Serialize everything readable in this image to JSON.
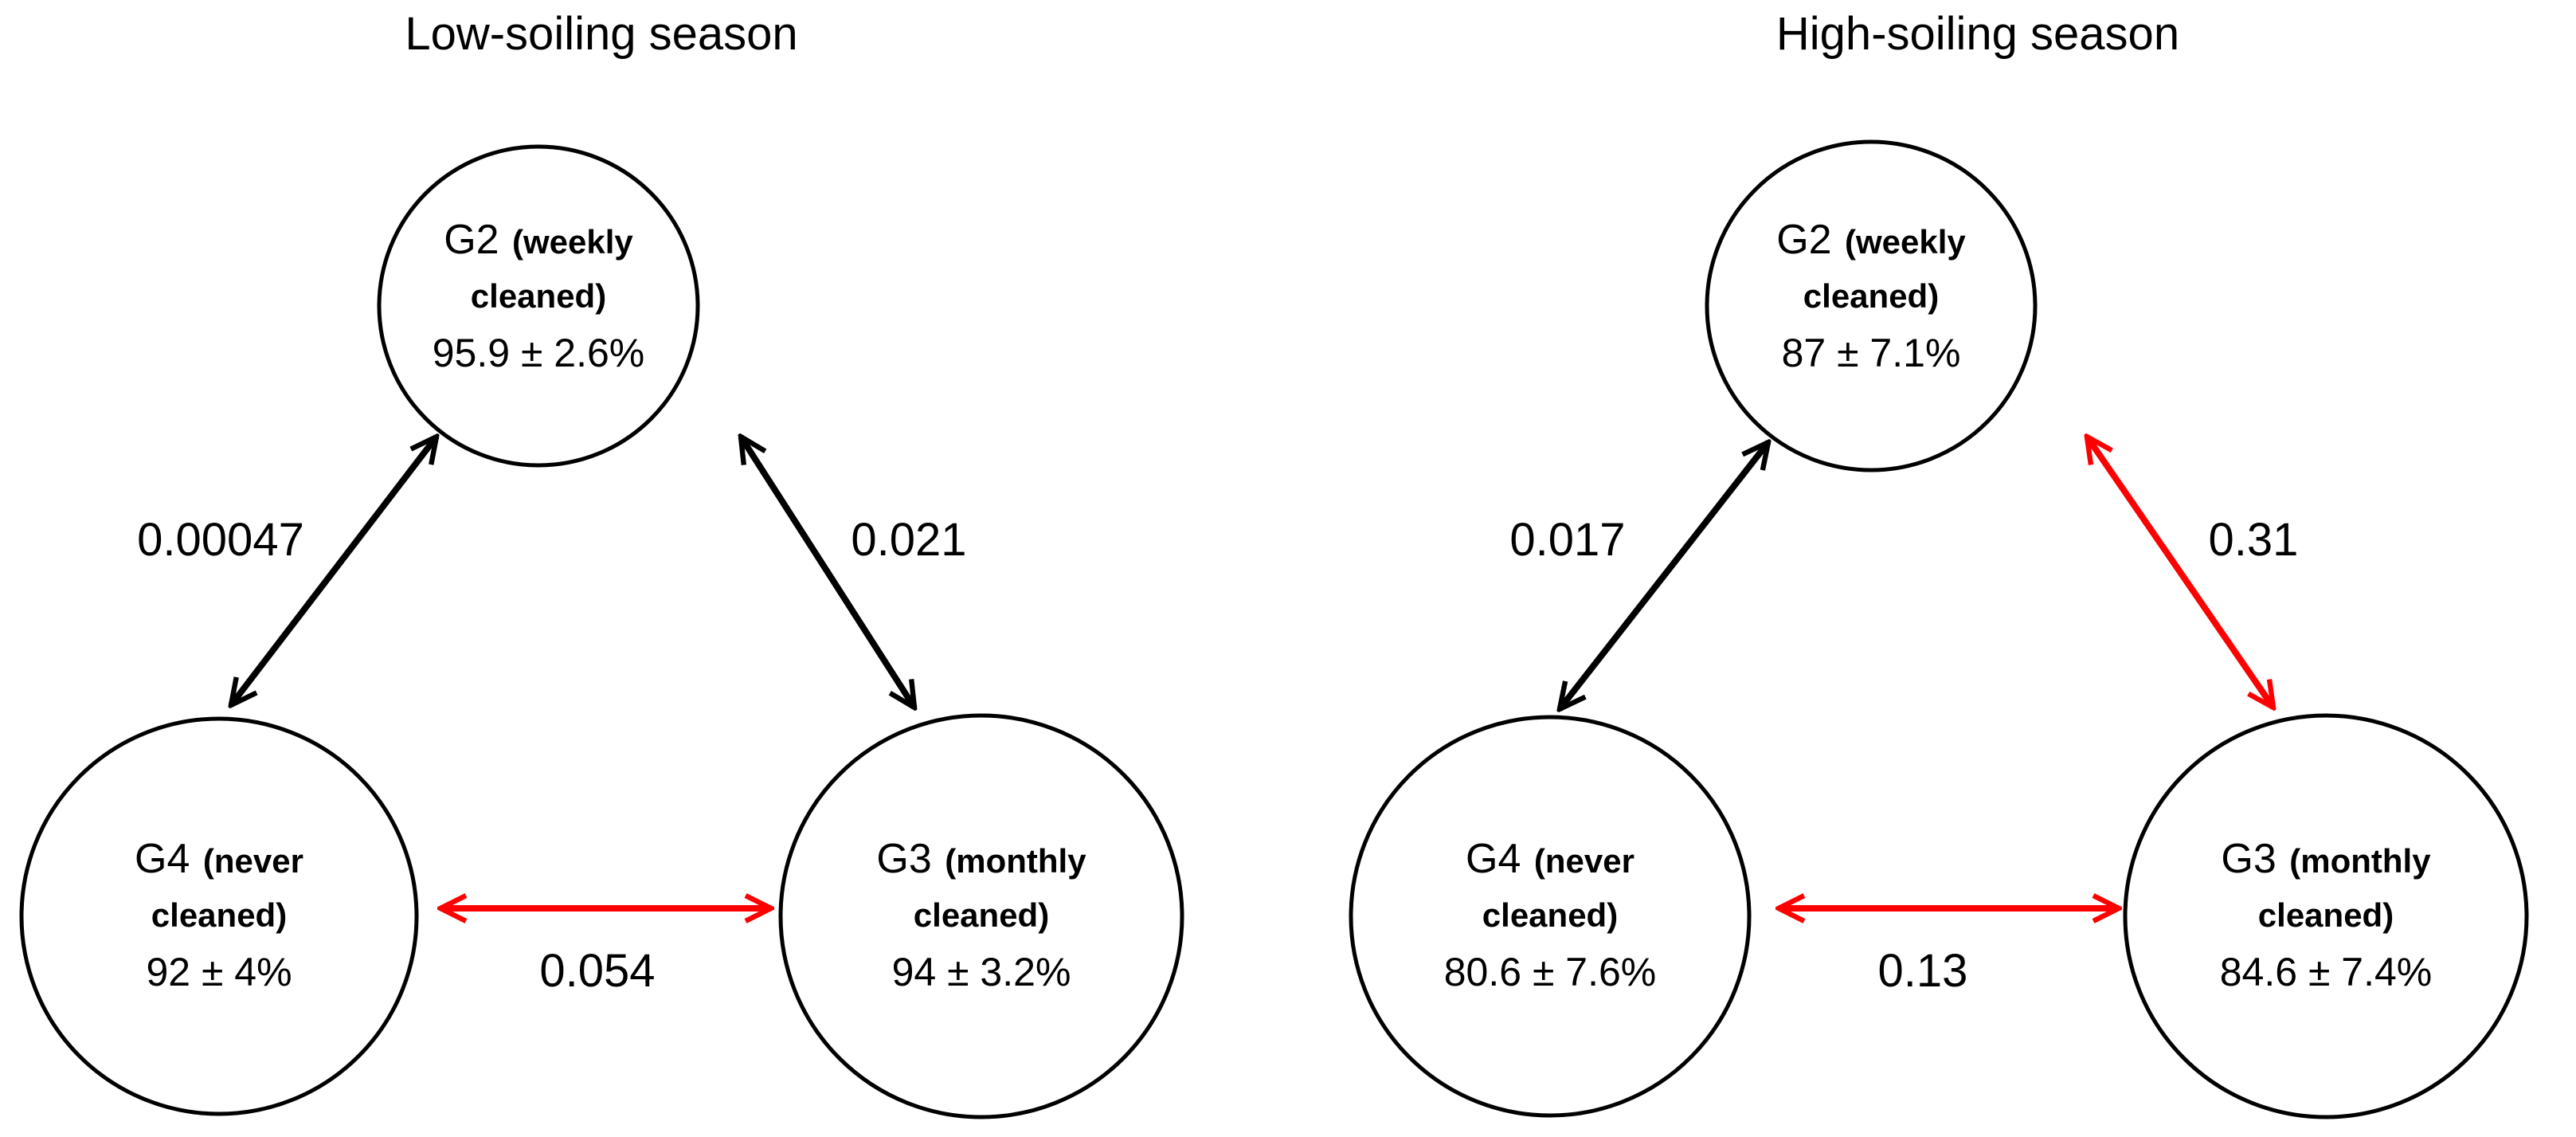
{
  "colors": {
    "significant": "#000000",
    "not_significant": "#ff0000"
  },
  "panels": [
    {
      "title": "Low-soiling season",
      "nodes": [
        {
          "id": "G2",
          "name": "G2",
          "sub1": "(weekly",
          "sub2": "cleaned)",
          "value": "95.9 ± 2.6%"
        },
        {
          "id": "G4",
          "name": "G4",
          "sub1": "(never",
          "sub2": "cleaned)",
          "value": "92 ± 4%"
        },
        {
          "id": "G3",
          "name": "G3",
          "sub1": "(monthly",
          "sub2": "cleaned)",
          "value": "94 ± 3.2%"
        }
      ],
      "edges": [
        {
          "id": "G2-G4",
          "label": "0.00047",
          "color": "#000000"
        },
        {
          "id": "G2-G3",
          "label": "0.021",
          "color": "#000000"
        },
        {
          "id": "G4-G3",
          "label": "0.054",
          "color": "#ff0000"
        }
      ]
    },
    {
      "title": "High-soiling season",
      "nodes": [
        {
          "id": "G2",
          "name": "G2",
          "sub1": "(weekly",
          "sub2": "cleaned)",
          "value": "87 ± 7.1%"
        },
        {
          "id": "G4",
          "name": "G4",
          "sub1": "(never",
          "sub2": "cleaned)",
          "value": "80.6 ± 7.6%"
        },
        {
          "id": "G3",
          "name": "G3",
          "sub1": "(monthly",
          "sub2": "cleaned)",
          "value": "84.6 ± 7.4%"
        }
      ],
      "edges": [
        {
          "id": "G2-G4",
          "label": "0.017",
          "color": "#000000"
        },
        {
          "id": "G2-G3",
          "label": "0.31",
          "color": "#ff0000"
        },
        {
          "id": "G4-G3",
          "label": "0.13",
          "color": "#ff0000"
        }
      ]
    }
  ]
}
